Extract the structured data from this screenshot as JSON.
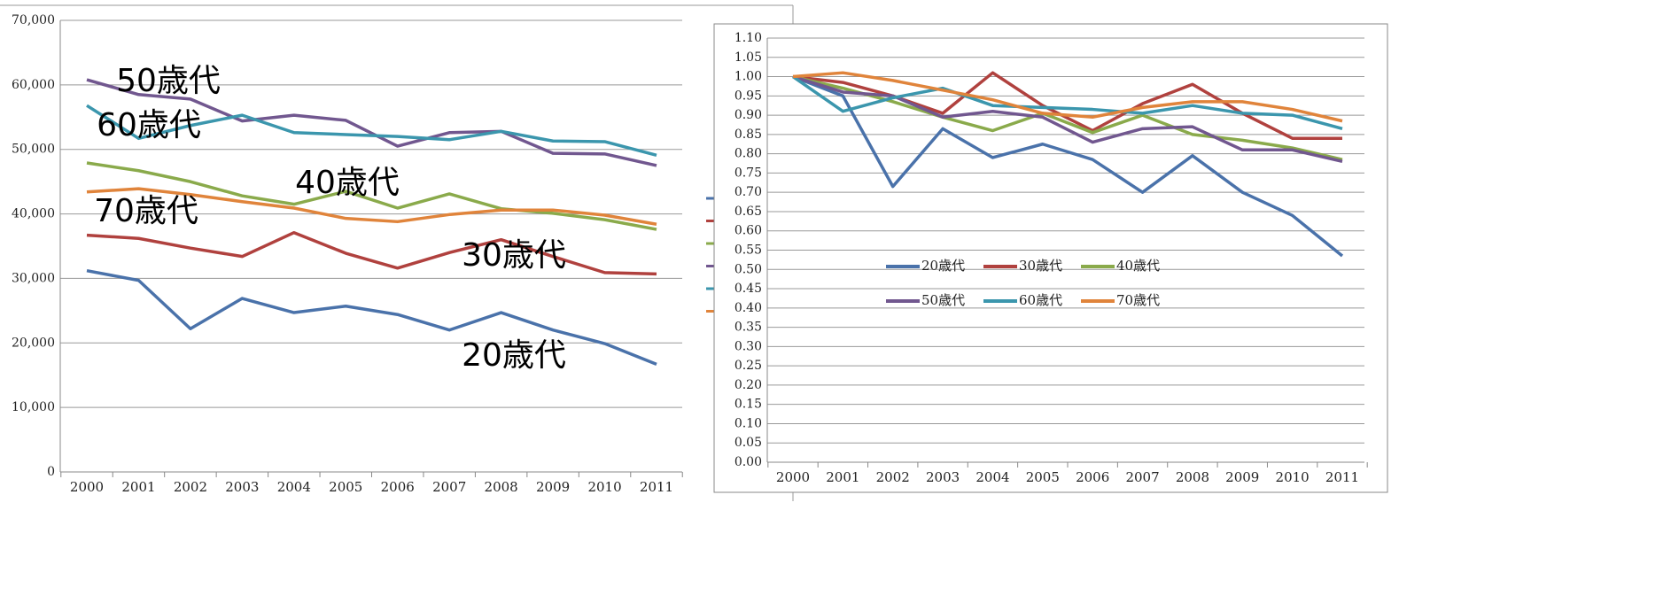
{
  "chart_data": [
    {
      "type": "line",
      "categories": [
        "2000",
        "2001",
        "2002",
        "2003",
        "2004",
        "2005",
        "2006",
        "2007",
        "2008",
        "2009",
        "2010",
        "2011"
      ],
      "ylim": [
        0,
        70000
      ],
      "yticks": [
        0,
        {
          "value": 10000,
          "label": "10,000"
        },
        {
          "value": 20000,
          "label": "20,000"
        },
        {
          "value": 30000,
          "label": "30,000"
        },
        {
          "value": 40000,
          "label": "40,000"
        },
        {
          "value": 50000,
          "label": "50,000"
        },
        {
          "value": 60000,
          "label": "60,000"
        },
        {
          "value": 70000,
          "label": "70,000"
        }
      ],
      "grid": true,
      "series": [
        {
          "name": "20歳代",
          "color": "#4a72aa",
          "values": [
            31200,
            29700,
            22200,
            26900,
            24700,
            25700,
            24400,
            22000,
            24700,
            22000,
            19900,
            16700
          ]
        },
        {
          "name": "30歳代",
          "color": "#b0413e",
          "values": [
            36700,
            36200,
            34700,
            33400,
            37100,
            33900,
            31600,
            34000,
            36000,
            33400,
            30900,
            30700
          ]
        },
        {
          "name": "40歳代",
          "color": "#8aaa4b",
          "values": [
            47900,
            46700,
            45000,
            42800,
            41500,
            43500,
            40900,
            43100,
            40800,
            40100,
            39100,
            37600
          ]
        },
        {
          "name": "50歳代",
          "color": "#71578f",
          "values": [
            60800,
            58500,
            57800,
            54400,
            55300,
            54500,
            50500,
            52600,
            52800,
            49400,
            49300,
            47500
          ]
        },
        {
          "name": "60歳代",
          "color": "#3b96ad",
          "values": [
            56800,
            51700,
            53700,
            55300,
            52600,
            52300,
            52000,
            51500,
            52800,
            51300,
            51200,
            49100
          ]
        },
        {
          "name": "70歳代",
          "color": "#e0843b",
          "values": [
            43400,
            43900,
            43000,
            41900,
            40900,
            39300,
            38800,
            39900,
            40600,
            40600,
            39800,
            38400
          ]
        }
      ],
      "annotations": [
        "50歳代",
        "60歳代",
        "40歳代",
        "70歳代",
        "30歳代",
        "20歳代"
      ]
    },
    {
      "type": "line",
      "categories": [
        "2000",
        "2001",
        "2002",
        "2003",
        "2004",
        "2005",
        "2006",
        "2007",
        "2008",
        "2009",
        "2010",
        "2011"
      ],
      "ylim": [
        0,
        1.1
      ],
      "yticks": [
        {
          "value": 0,
          "label": "0.00"
        },
        0.05,
        {
          "value": 0.1,
          "label": "0.10"
        },
        0.15,
        {
          "value": 0.2,
          "label": "0.20"
        },
        0.25,
        {
          "value": 0.3,
          "label": "0.30"
        },
        0.35,
        {
          "value": 0.4,
          "label": "0.40"
        },
        0.45,
        {
          "value": 0.5,
          "label": "0.50"
        },
        0.55,
        {
          "value": 0.6,
          "label": "0.60"
        },
        0.65,
        {
          "value": 0.7,
          "label": "0.70"
        },
        0.75,
        {
          "value": 0.8,
          "label": "0.80"
        },
        0.85,
        {
          "value": 0.9,
          "label": "0.90"
        },
        0.95,
        {
          "value": 1,
          "label": "1.00"
        },
        1.05,
        {
          "value": 1.1,
          "label": "1.10"
        }
      ],
      "grid": true,
      "legend": "center",
      "series": [
        {
          "name": "20歳代",
          "color": "#4a72aa",
          "values": [
            1.0,
            0.95,
            0.715,
            0.865,
            0.79,
            0.825,
            0.785,
            0.7,
            0.795,
            0.7,
            0.64,
            0.535
          ]
        },
        {
          "name": "30歳代",
          "color": "#b0413e",
          "values": [
            1.0,
            0.985,
            0.95,
            0.905,
            1.01,
            0.925,
            0.86,
            0.93,
            0.98,
            0.905,
            0.84,
            0.84
          ]
        },
        {
          "name": "40歳代",
          "color": "#8aaa4b",
          "values": [
            1.0,
            0.97,
            0.935,
            0.895,
            0.86,
            0.905,
            0.855,
            0.9,
            0.85,
            0.835,
            0.815,
            0.785
          ]
        },
        {
          "name": "50歳代",
          "color": "#71578f",
          "values": [
            1.0,
            0.96,
            0.95,
            0.895,
            0.91,
            0.895,
            0.83,
            0.865,
            0.87,
            0.81,
            0.81,
            0.78
          ]
        },
        {
          "name": "60歳代",
          "color": "#3b96ad",
          "values": [
            1.0,
            0.91,
            0.945,
            0.97,
            0.925,
            0.92,
            0.915,
            0.905,
            0.925,
            0.905,
            0.9,
            0.865
          ]
        },
        {
          "name": "70歳代",
          "color": "#e0843b",
          "values": [
            1.0,
            1.01,
            0.99,
            0.965,
            0.94,
            0.905,
            0.895,
            0.92,
            0.935,
            0.935,
            0.915,
            0.885
          ]
        }
      ]
    }
  ]
}
